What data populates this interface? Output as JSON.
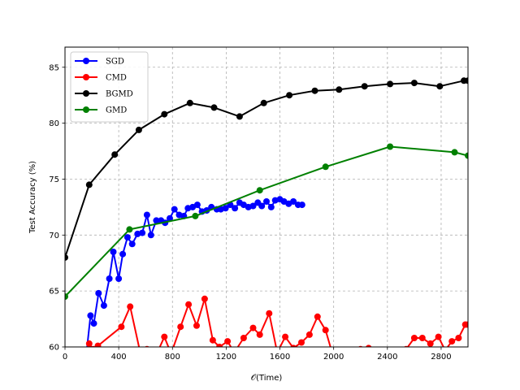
{
  "chart_data": {
    "type": "line",
    "title": "",
    "xlabel": "𝒪(Time)",
    "ylabel": "Test Accuracy (%)",
    "xlim": [
      0,
      3000
    ],
    "ylim": [
      60,
      86.8
    ],
    "xticks": [
      0,
      400,
      800,
      1200,
      1600,
      2000,
      2400,
      2800
    ],
    "yticks": [
      60,
      65,
      70,
      75,
      80,
      85
    ],
    "grid": true,
    "legend_position": "top-left",
    "series": [
      {
        "name": "SGD",
        "color": "#0000ff",
        "x": [
          160,
          190,
          215,
          250,
          290,
          330,
          360,
          400,
          430,
          465,
          500,
          540,
          575,
          610,
          640,
          680,
          715,
          745,
          780,
          815,
          850,
          885,
          915,
          950,
          985,
          1020,
          1055,
          1090,
          1130,
          1160,
          1195,
          1230,
          1265,
          1300,
          1330,
          1365,
          1400,
          1435,
          1465,
          1500,
          1535,
          1565,
          1600,
          1630,
          1665,
          1700,
          1735,
          1765
        ],
        "y": [
          59.5,
          62.8,
          62.1,
          64.8,
          63.7,
          66.1,
          68.5,
          66.1,
          68.3,
          69.8,
          69.2,
          70.1,
          70.2,
          71.8,
          70.0,
          71.3,
          71.3,
          71.1,
          71.5,
          72.3,
          71.8,
          71.7,
          72.4,
          72.5,
          72.7,
          72.1,
          72.2,
          72.5,
          72.3,
          72.3,
          72.4,
          72.7,
          72.4,
          72.9,
          72.7,
          72.5,
          72.6,
          72.9,
          72.6,
          73.0,
          72.5,
          73.1,
          73.2,
          73.0,
          72.8,
          73.0,
          72.7,
          72.7
        ]
      },
      {
        "name": "CMD",
        "color": "#ff0000",
        "x": [
          140,
          180,
          210,
          245,
          420,
          485,
          560,
          610,
          680,
          740,
          790,
          860,
          920,
          980,
          1040,
          1100,
          1150,
          1210,
          1260,
          1330,
          1400,
          1450,
          1520,
          1580,
          1640,
          1700,
          1760,
          1820,
          1880,
          1940,
          2000,
          2060,
          2130,
          2200,
          2260,
          2330,
          2400,
          2470,
          2540,
          2600,
          2660,
          2720,
          2780,
          2830,
          2880,
          2930,
          2980,
          3000
        ],
        "y": [
          59.0,
          60.3,
          59.8,
          60.1,
          61.8,
          63.6,
          59.5,
          59.8,
          59.3,
          60.9,
          59.4,
          61.8,
          63.8,
          61.9,
          64.3,
          60.6,
          60.0,
          60.5,
          59.5,
          60.8,
          61.7,
          61.1,
          63.0,
          59.5,
          60.9,
          59.9,
          60.4,
          61.1,
          62.7,
          61.5,
          59.0,
          59.3,
          59.5,
          59.8,
          59.9,
          59.4,
          59.2,
          59.6,
          59.8,
          60.8,
          60.8,
          60.3,
          60.9,
          59.7,
          60.5,
          60.8,
          62.0,
          62.0
        ]
      },
      {
        "name": "BGMD",
        "color": "#000000",
        "x": [
          0,
          180,
          370,
          550,
          740,
          930,
          1110,
          1300,
          1480,
          1670,
          1860,
          2040,
          2230,
          2420,
          2600,
          2790,
          2970,
          3000
        ],
        "y": [
          68.0,
          74.5,
          77.2,
          79.4,
          80.8,
          81.8,
          81.4,
          80.6,
          81.8,
          82.5,
          82.9,
          83.0,
          83.3,
          83.5,
          83.6,
          83.3,
          83.8,
          83.8
        ]
      },
      {
        "name": "GMD",
        "color": "#008000",
        "x": [
          0,
          480,
          970,
          1450,
          1940,
          2420,
          2900,
          3000
        ],
        "y": [
          64.5,
          70.5,
          71.7,
          74.0,
          76.1,
          77.9,
          77.4,
          77.1
        ]
      }
    ]
  }
}
